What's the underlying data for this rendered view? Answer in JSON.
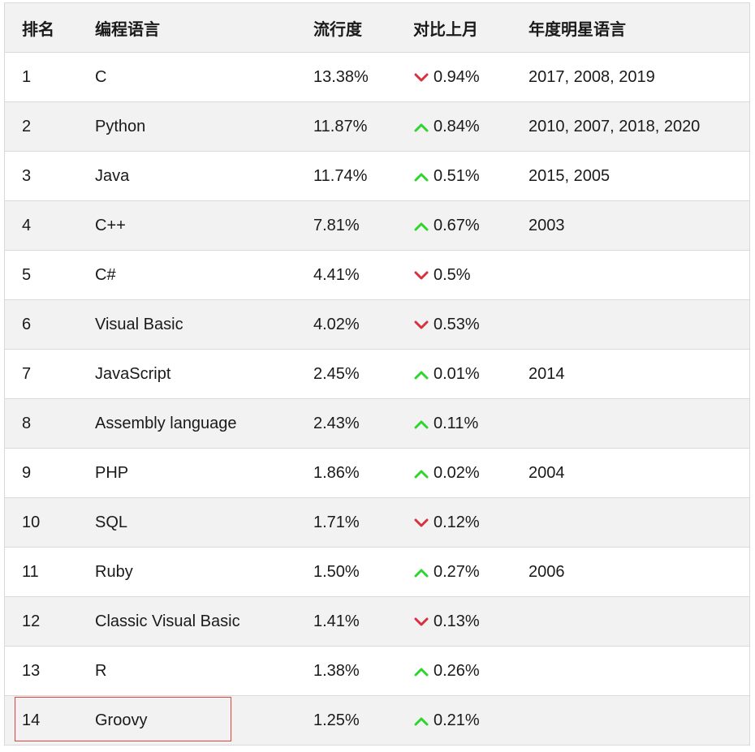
{
  "header": {
    "rank": "排名",
    "language": "编程语言",
    "popularity": "流行度",
    "change": "对比上月",
    "star_years": "年度明星语言"
  },
  "colors": {
    "up": "#2dd52d",
    "down": "#d7303f",
    "highlight": "#e0443e"
  },
  "rows": [
    {
      "rank": "1",
      "language": "C",
      "popularity": "13.38%",
      "direction": "down",
      "change": "0.94%",
      "star_years": "2017, 2008, 2019"
    },
    {
      "rank": "2",
      "language": "Python",
      "popularity": "11.87%",
      "direction": "up",
      "change": "0.84%",
      "star_years": "2010, 2007, 2018, 2020"
    },
    {
      "rank": "3",
      "language": "Java",
      "popularity": "11.74%",
      "direction": "up",
      "change": "0.51%",
      "star_years": "2015, 2005"
    },
    {
      "rank": "4",
      "language": "C++",
      "popularity": "7.81%",
      "direction": "up",
      "change": "0.67%",
      "star_years": "2003"
    },
    {
      "rank": "5",
      "language": "C#",
      "popularity": "4.41%",
      "direction": "down",
      "change": "0.5%",
      "star_years": ""
    },
    {
      "rank": "6",
      "language": "Visual Basic",
      "popularity": "4.02%",
      "direction": "down",
      "change": "0.53%",
      "star_years": ""
    },
    {
      "rank": "7",
      "language": "JavaScript",
      "popularity": "2.45%",
      "direction": "up",
      "change": "0.01%",
      "star_years": "2014"
    },
    {
      "rank": "8",
      "language": "Assembly language",
      "popularity": "2.43%",
      "direction": "up",
      "change": "0.11%",
      "star_years": ""
    },
    {
      "rank": "9",
      "language": "PHP",
      "popularity": "1.86%",
      "direction": "up",
      "change": "0.02%",
      "star_years": "2004"
    },
    {
      "rank": "10",
      "language": "SQL",
      "popularity": "1.71%",
      "direction": "down",
      "change": "0.12%",
      "star_years": ""
    },
    {
      "rank": "11",
      "language": "Ruby",
      "popularity": "1.50%",
      "direction": "up",
      "change": "0.27%",
      "star_years": "2006"
    },
    {
      "rank": "12",
      "language": "Classic Visual Basic",
      "popularity": "1.41%",
      "direction": "down",
      "change": "0.13%",
      "star_years": ""
    },
    {
      "rank": "13",
      "language": "R",
      "popularity": "1.38%",
      "direction": "up",
      "change": "0.26%",
      "star_years": ""
    },
    {
      "rank": "14",
      "language": "Groovy",
      "popularity": "1.25%",
      "direction": "up",
      "change": "0.21%",
      "star_years": ""
    }
  ]
}
